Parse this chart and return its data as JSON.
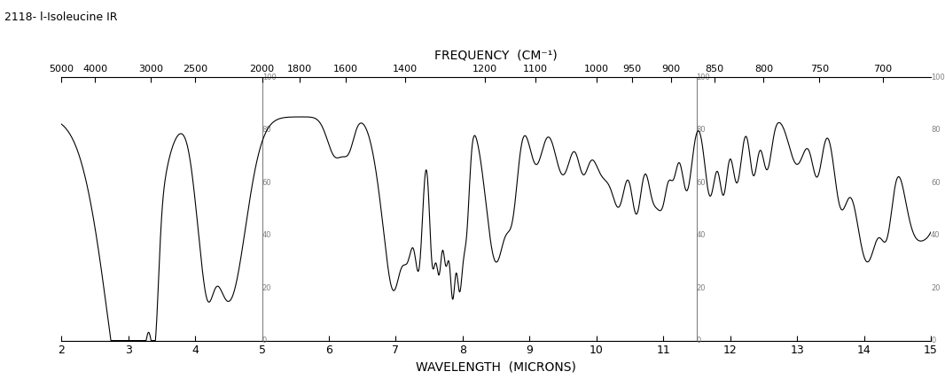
{
  "title": "2118- l-Isoleucine IR",
  "top_xlabel": "FREQUENCY  (CM⁻¹)",
  "bottom_xlabel": "WAVELENGTH  (MICRONS)",
  "ylabel_ticks": [
    0,
    20,
    40,
    60,
    80,
    100
  ],
  "wavelength_min": 2,
  "wavelength_max": 15,
  "transmittance_min": 0,
  "transmittance_max": 100,
  "background_color": "#ffffff",
  "line_color": "#000000",
  "divider_lines_wavenumber": [
    2000,
    870
  ],
  "top_axis_ticks": [
    5000,
    4000,
    3000,
    2500,
    2000,
    1800,
    1600,
    1400,
    1200,
    1100,
    1000,
    950,
    900,
    850,
    800,
    750,
    700
  ],
  "bottom_axis_ticks": [
    2,
    3,
    4,
    5,
    6,
    7,
    8,
    9,
    10,
    11,
    12,
    13,
    14,
    15
  ]
}
